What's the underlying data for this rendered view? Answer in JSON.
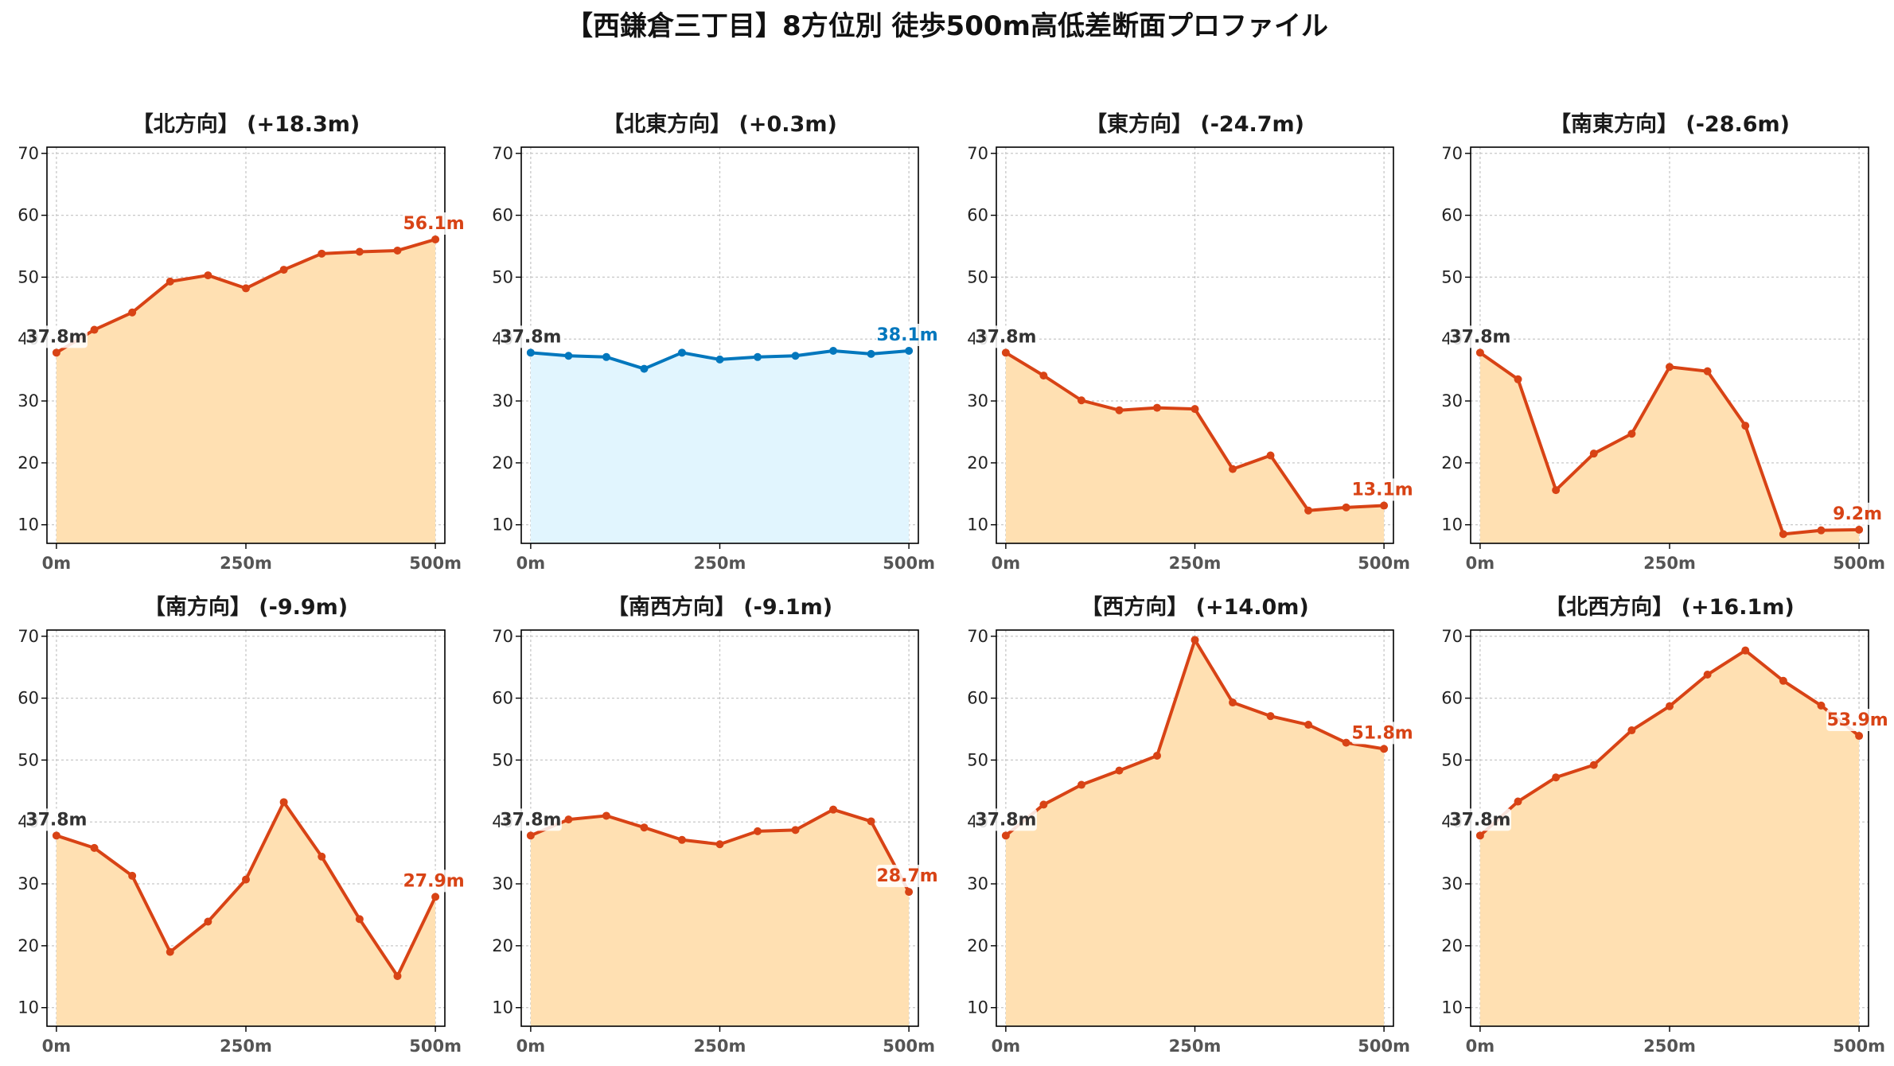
{
  "title": "【西鎌倉三丁目】8方位別 徒歩500m高低差断面プロファイル",
  "colors": {
    "uphill_or_downhill_line": "#d84315",
    "uphill_or_downhill_fill": "#ffe0b2",
    "flat_line": "#0277bd",
    "flat_fill": "#e1f5fe",
    "start_label": "#333333"
  },
  "chart_data": [
    {
      "type": "area",
      "title": "【北方向】 (+18.3m)",
      "style": "warm",
      "x": [
        0,
        50,
        100,
        150,
        200,
        250,
        300,
        350,
        400,
        450,
        500
      ],
      "x_ticks": [
        "0m",
        "250m",
        "500m"
      ],
      "y": [
        37.8,
        41.5,
        44.3,
        49.3,
        50.3,
        48.2,
        51.2,
        53.8,
        54.1,
        54.3,
        56.1
      ],
      "ylim": [
        7,
        71
      ],
      "yticks": [
        10,
        20,
        30,
        40,
        50,
        60,
        70
      ],
      "start_label": "37.8m",
      "end_label": "56.1m",
      "grid": true
    },
    {
      "type": "area",
      "title": "【北東方向】 (+0.3m)",
      "style": "flat",
      "x": [
        0,
        50,
        100,
        150,
        200,
        250,
        300,
        350,
        400,
        450,
        500
      ],
      "x_ticks": [
        "0m",
        "250m",
        "500m"
      ],
      "y": [
        37.8,
        37.3,
        37.1,
        35.2,
        37.8,
        36.7,
        37.1,
        37.3,
        38.1,
        37.6,
        38.1
      ],
      "ylim": [
        7,
        71
      ],
      "yticks": [
        10,
        20,
        30,
        40,
        50,
        60,
        70
      ],
      "start_label": "37.8m",
      "end_label": "38.1m",
      "grid": true
    },
    {
      "type": "area",
      "title": "【東方向】 (-24.7m)",
      "style": "warm",
      "x": [
        0,
        50,
        100,
        150,
        200,
        250,
        300,
        350,
        400,
        450,
        500
      ],
      "x_ticks": [
        "0m",
        "250m",
        "500m"
      ],
      "y": [
        37.8,
        34.1,
        30.1,
        28.5,
        28.9,
        28.7,
        19.0,
        21.2,
        12.3,
        12.8,
        13.1
      ],
      "ylim": [
        7,
        71
      ],
      "yticks": [
        10,
        20,
        30,
        40,
        50,
        60,
        70
      ],
      "start_label": "37.8m",
      "end_label": "13.1m",
      "grid": true
    },
    {
      "type": "area",
      "title": "【南東方向】 (-28.6m)",
      "style": "warm",
      "x": [
        0,
        50,
        100,
        150,
        200,
        250,
        300,
        350,
        400,
        450,
        500
      ],
      "x_ticks": [
        "0m",
        "250m",
        "500m"
      ],
      "y": [
        37.8,
        33.5,
        15.6,
        21.5,
        24.7,
        35.5,
        34.8,
        26.0,
        8.5,
        9.1,
        9.2
      ],
      "ylim": [
        7,
        71
      ],
      "yticks": [
        10,
        20,
        30,
        40,
        50,
        60,
        70
      ],
      "start_label": "37.8m",
      "end_label": "9.2m",
      "grid": true
    },
    {
      "type": "area",
      "title": "【南方向】 (-9.9m)",
      "style": "warm",
      "x": [
        0,
        50,
        100,
        150,
        200,
        250,
        300,
        350,
        400,
        450,
        500
      ],
      "x_ticks": [
        "0m",
        "250m",
        "500m"
      ],
      "y": [
        37.8,
        35.8,
        31.3,
        19.0,
        23.9,
        30.7,
        43.2,
        34.4,
        24.3,
        15.1,
        27.9
      ],
      "ylim": [
        7,
        71
      ],
      "yticks": [
        10,
        20,
        30,
        40,
        50,
        60,
        70
      ],
      "start_label": "37.8m",
      "end_label": "27.9m",
      "grid": true
    },
    {
      "type": "area",
      "title": "【南西方向】 (-9.1m)",
      "style": "warm",
      "x": [
        0,
        50,
        100,
        150,
        200,
        250,
        300,
        350,
        400,
        450,
        500
      ],
      "x_ticks": [
        "0m",
        "250m",
        "500m"
      ],
      "y": [
        37.8,
        40.4,
        41.0,
        39.1,
        37.1,
        36.4,
        38.5,
        38.7,
        42.0,
        40.1,
        28.7
      ],
      "ylim": [
        7,
        71
      ],
      "yticks": [
        10,
        20,
        30,
        40,
        50,
        60,
        70
      ],
      "start_label": "37.8m",
      "end_label": "28.7m",
      "grid": true
    },
    {
      "type": "area",
      "title": "【西方向】 (+14.0m)",
      "style": "warm",
      "x": [
        0,
        50,
        100,
        150,
        200,
        250,
        300,
        350,
        400,
        450,
        500
      ],
      "x_ticks": [
        "0m",
        "250m",
        "500m"
      ],
      "y": [
        37.8,
        42.8,
        46.0,
        48.3,
        50.7,
        69.4,
        59.3,
        57.1,
        55.7,
        52.8,
        51.8
      ],
      "ylim": [
        7,
        71
      ],
      "yticks": [
        10,
        20,
        30,
        40,
        50,
        60,
        70
      ],
      "start_label": "37.8m",
      "end_label": "51.8m",
      "grid": true
    },
    {
      "type": "area",
      "title": "【北西方向】 (+16.1m)",
      "style": "warm",
      "x": [
        0,
        50,
        100,
        150,
        200,
        250,
        300,
        350,
        400,
        450,
        500
      ],
      "x_ticks": [
        "0m",
        "250m",
        "500m"
      ],
      "y": [
        37.8,
        43.3,
        47.2,
        49.2,
        54.8,
        58.7,
        63.8,
        67.7,
        62.8,
        58.8,
        53.9
      ],
      "ylim": [
        7,
        71
      ],
      "yticks": [
        10,
        20,
        30,
        40,
        50,
        60,
        70
      ],
      "start_label": "37.8m",
      "end_label": "53.9m",
      "grid": true
    }
  ]
}
